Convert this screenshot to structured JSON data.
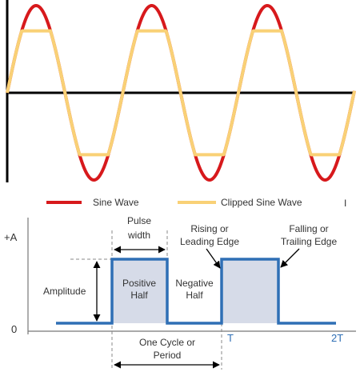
{
  "colors": {
    "sine": "#d7191c",
    "clipped": "#f9d176",
    "axis": "#000000",
    "pulse": "#2f6fb5",
    "pulse_fill": "#d6dbe8",
    "text": "#333333",
    "guide": "#888888"
  },
  "top_chart": {
    "legend": {
      "sine": "Sine Wave",
      "clipped": "Clipped Sine Wave"
    },
    "cursor_mark": "I"
  },
  "pulse_diagram": {
    "y_labels": {
      "top": "+A",
      "bottom": "0"
    },
    "x_labels": {
      "t": "T",
      "two_t": "2T"
    },
    "labels": {
      "amplitude": "Amplitude",
      "pulse_width_1": "Pulse",
      "pulse_width_2": "width",
      "positive_1": "Positive",
      "positive_2": "Half",
      "negative_1": "Negative",
      "negative_2": "Half",
      "rising_1": "Rising or",
      "rising_2": "Leading Edge",
      "falling_1": "Falling or",
      "falling_2": "Trailing Edge",
      "cycle_1": "One Cycle or",
      "cycle_2": "Period"
    }
  }
}
